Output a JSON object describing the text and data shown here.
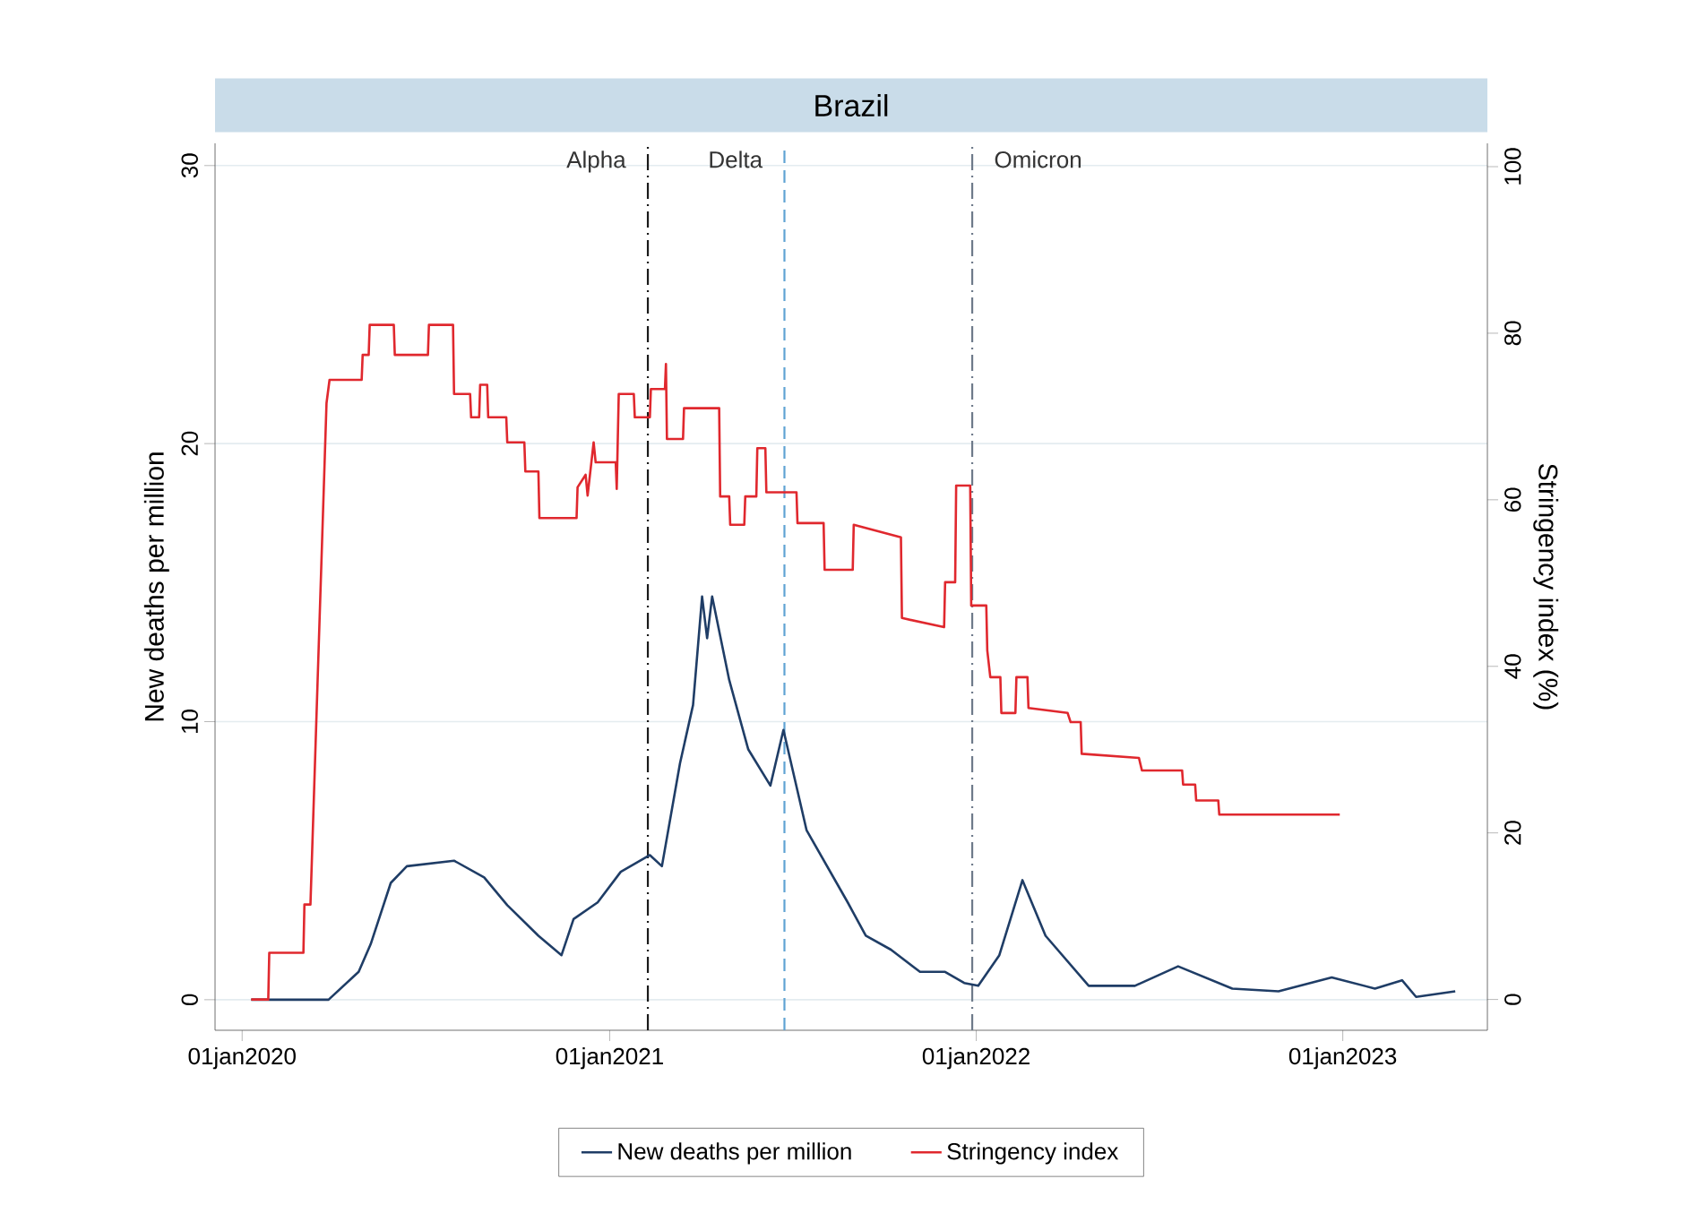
{
  "chart_data": {
    "type": "line",
    "title": "Brazil",
    "ylabel": "New deaths per million",
    "y2label": "Stringency index (%)",
    "xlim": [
      "2019-12-05",
      "2023-05-25"
    ],
    "xticks": [
      {
        "value": "2020-01-01",
        "label": "01jan2020"
      },
      {
        "value": "2021-01-01",
        "label": "01jan2021"
      },
      {
        "value": "2022-01-01",
        "label": "01jan2022"
      },
      {
        "value": "2023-01-01",
        "label": "01jan2023"
      }
    ],
    "ylim": [
      -1.1,
      30.8
    ],
    "yticks": [
      0,
      10,
      20,
      30
    ],
    "y2lim": [
      -3.7,
      102.8
    ],
    "y2ticks": [
      0,
      20,
      40,
      60,
      80,
      100
    ],
    "grid": "y",
    "legend": "bottom",
    "line_style": "solid",
    "series": [
      {
        "name": "New deaths per million",
        "color": "#1f3d66",
        "x": [
          "2020-01-10",
          "2020-03-27",
          "2020-04-26",
          "2020-05-08",
          "2020-05-28",
          "2020-06-13",
          "2020-07-30",
          "2020-08-29",
          "2020-09-21",
          "2020-10-22",
          "2020-11-14",
          "2020-11-26",
          "2020-12-20",
          "2021-01-12",
          "2021-02-10",
          "2021-02-22",
          "2021-03-12",
          "2021-03-25",
          "2021-04-03",
          "2021-04-08",
          "2021-04-13",
          "2021-04-30",
          "2021-05-19",
          "2021-06-10",
          "2021-06-23",
          "2021-07-16",
          "2021-08-26",
          "2021-09-13",
          "2021-10-08",
          "2021-11-06",
          "2021-12-01",
          "2021-12-20",
          "2022-01-03",
          "2022-01-24",
          "2022-02-16",
          "2022-03-11",
          "2022-04-23",
          "2022-06-08",
          "2022-07-21",
          "2022-09-13",
          "2022-10-29",
          "2022-12-21",
          "2023-02-02",
          "2023-03-01",
          "2023-03-15",
          "2023-04-23"
        ],
        "values": [
          0,
          0,
          1.0,
          2.0,
          4.2,
          4.8,
          5.0,
          4.4,
          3.4,
          2.3,
          1.6,
          2.9,
          3.5,
          4.6,
          5.2,
          4.8,
          8.5,
          10.6,
          14.5,
          13,
          14.5,
          11.5,
          9.0,
          7.7,
          9.7,
          6.1,
          3.5,
          2.3,
          1.8,
          1.0,
          1.0,
          0.6,
          0.5,
          1.6,
          4.3,
          2.3,
          0.5,
          0.5,
          1.2,
          0.4,
          0.3,
          0.8,
          0.4,
          0.7,
          0.1,
          0.3
        ]
      },
      {
        "name": "Stringency index",
        "color": "#e0282e",
        "axis": "y2",
        "x": [
          "2020-01-10",
          "2020-01-27",
          "2020-01-28",
          "2020-03-02",
          "2020-03-03",
          "2020-03-09",
          "2020-03-25",
          "2020-03-28",
          "2020-04-29",
          "2020-04-30",
          "2020-05-06",
          "2020-05-07",
          "2020-05-31",
          "2020-06-01",
          "2020-07-04",
          "2020-07-05",
          "2020-07-29",
          "2020-07-30",
          "2020-08-15",
          "2020-08-16",
          "2020-08-24",
          "2020-08-25",
          "2020-09-01",
          "2020-09-02",
          "2020-09-20",
          "2020-09-21",
          "2020-10-08",
          "2020-10-09",
          "2020-10-22",
          "2020-10-23",
          "2020-11-29",
          "2020-11-30",
          "2020-12-08",
          "2020-12-10",
          "2020-12-16",
          "2020-12-18",
          "2021-01-07",
          "2021-01-08",
          "2021-01-10",
          "2021-01-25",
          "2021-01-26",
          "2021-02-10",
          "2021-02-11",
          "2021-02-25",
          "2021-02-26",
          "2021-02-27",
          "2021-03-15",
          "2021-03-16",
          "2021-04-20",
          "2021-04-21",
          "2021-04-30",
          "2021-05-01",
          "2021-05-15",
          "2021-05-16",
          "2021-05-27",
          "2021-05-28",
          "2021-06-05",
          "2021-06-06",
          "2021-07-06",
          "2021-07-07",
          "2021-08-02",
          "2021-08-03",
          "2021-08-31",
          "2021-09-01",
          "2021-10-18",
          "2021-10-19",
          "2021-11-30",
          "2021-12-01",
          "2021-12-11",
          "2021-12-12",
          "2021-12-26",
          "2021-12-27",
          "2022-01-11",
          "2022-01-12",
          "2022-01-15",
          "2022-01-25",
          "2022-01-26",
          "2022-02-09",
          "2022-02-10",
          "2022-02-21",
          "2022-02-22",
          "2022-04-02",
          "2022-04-05",
          "2022-04-15",
          "2022-04-16",
          "2022-06-12",
          "2022-06-15",
          "2022-07-25",
          "2022-07-26",
          "2022-08-07",
          "2022-08-08",
          "2022-08-30",
          "2022-08-31",
          "2022-12-29"
        ],
        "values": [
          0,
          0,
          5.6,
          5.6,
          11.4,
          11.4,
          71.6,
          74.4,
          74.4,
          77.4,
          77.4,
          81,
          81,
          77.4,
          77.4,
          81,
          81,
          72.7,
          72.7,
          69.9,
          69.9,
          73.8,
          73.8,
          69.9,
          69.9,
          66.9,
          66.9,
          63.4,
          63.4,
          57.8,
          57.8,
          61.5,
          63,
          60.5,
          66.9,
          64.5,
          64.5,
          61.3,
          72.7,
          72.7,
          69.9,
          69.9,
          73.3,
          73.3,
          76.3,
          67.3,
          67.3,
          71,
          71,
          60.4,
          60.4,
          57,
          57,
          60.4,
          60.4,
          66.2,
          66.2,
          60.9,
          60.9,
          57.2,
          57.2,
          51.6,
          51.6,
          57,
          55.5,
          45.8,
          44.7,
          50.1,
          50.1,
          61.7,
          61.7,
          47.3,
          47.3,
          41.9,
          38.7,
          38.7,
          34.4,
          34.4,
          38.7,
          38.7,
          35,
          34.4,
          33.3,
          33.3,
          29.5,
          29,
          27.5,
          27.5,
          25.8,
          25.8,
          23.9,
          23.9,
          22.2,
          22.2
        ]
      }
    ],
    "ref_lines": [
      {
        "axis": "x",
        "value": "2021-02-08",
        "color": "#1a1a1a",
        "line_style": "dashdot",
        "label": "Alpha"
      },
      {
        "axis": "x",
        "value": "2021-06-24",
        "color": "#5fa3d3",
        "line_style": "dashed",
        "label": "Delta"
      },
      {
        "axis": "x",
        "value": "2021-12-28",
        "color": "#6e7a8a",
        "line_style": "dashdot",
        "label": "Omicron"
      }
    ]
  }
}
